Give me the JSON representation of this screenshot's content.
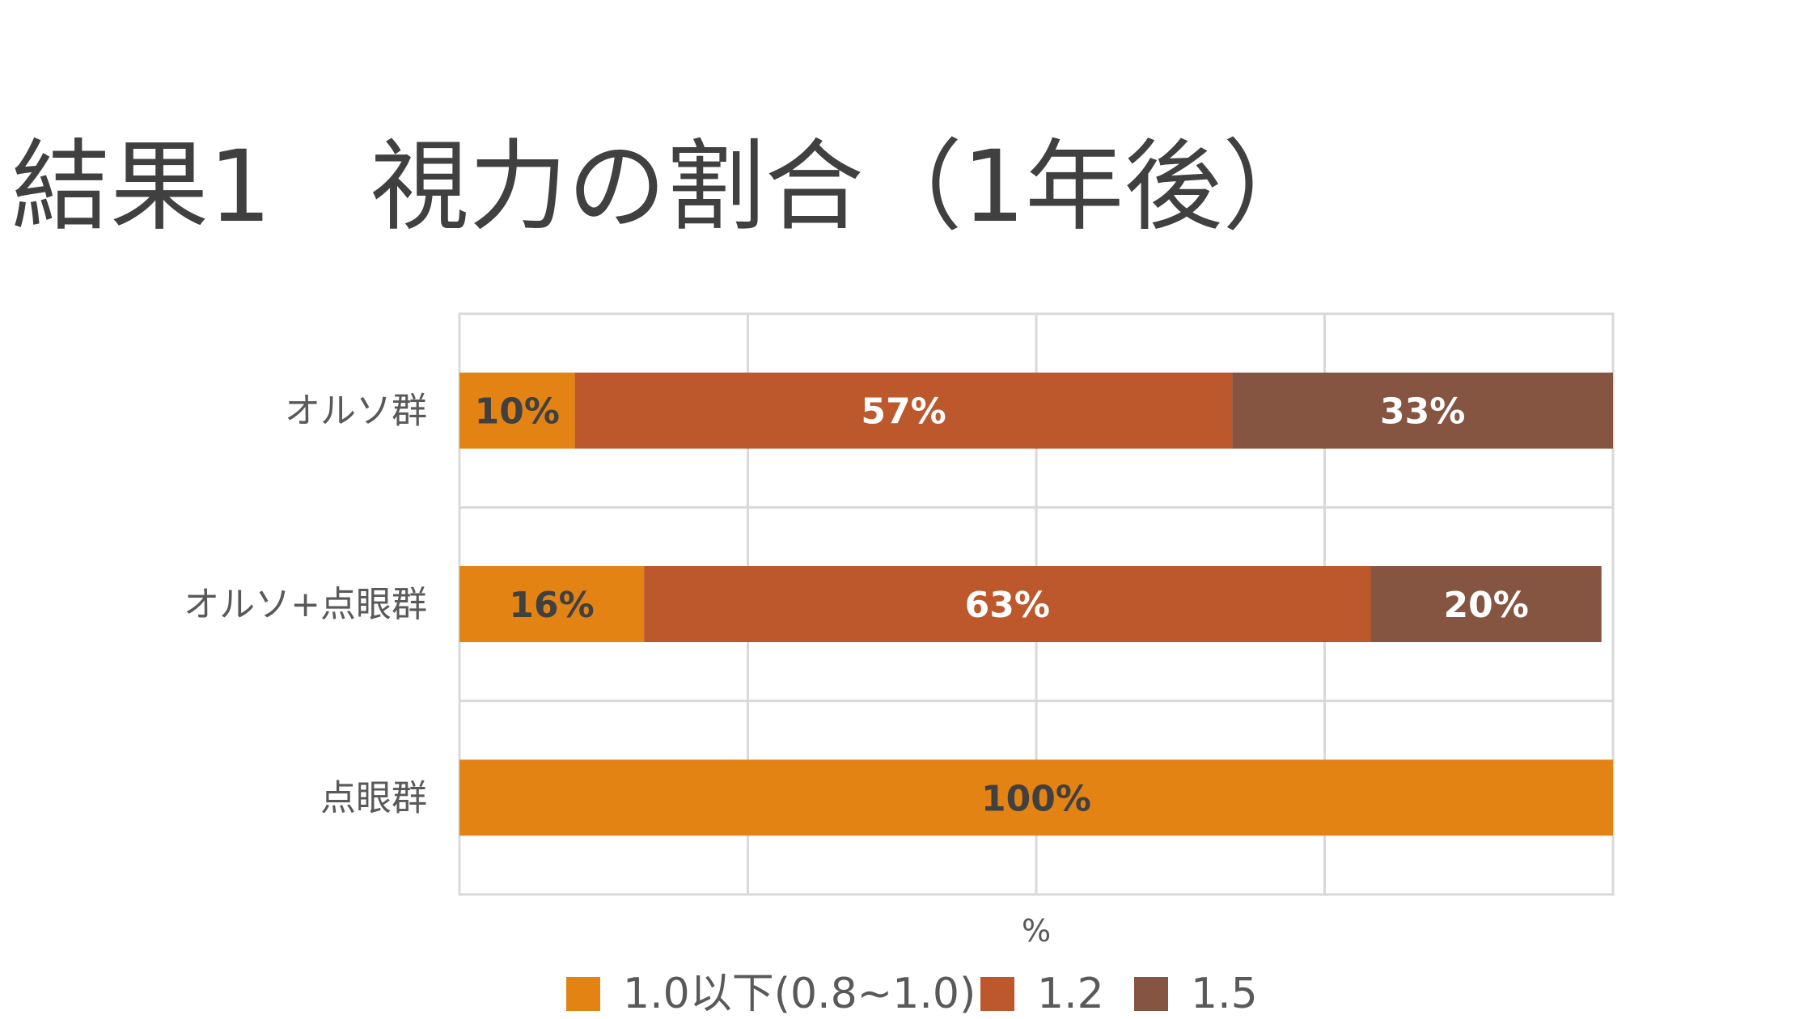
{
  "slide": {
    "title": "結果1　視力の割合（1年後）"
  },
  "chart_data": {
    "type": "bar",
    "orientation": "horizontal",
    "stacked": "100%",
    "categories": [
      "オルソ群",
      "オルソ+点眼群",
      "点眼群"
    ],
    "series": [
      {
        "name": "1.0以下(0.8~1.0)",
        "color": "#E38314",
        "label_color": "#404040",
        "values": [
          10,
          16,
          100
        ]
      },
      {
        "name": "1.2",
        "color": "#BC582B",
        "label_color": "#FFFFFF",
        "values": [
          57,
          63,
          0
        ]
      },
      {
        "name": "1.5",
        "color": "#865541",
        "label_color": "#FFFFFF",
        "values": [
          33,
          20,
          0
        ]
      }
    ],
    "xlabel": "%",
    "xlim": [
      0,
      100
    ],
    "grid": true,
    "legend_position": "bottom"
  }
}
